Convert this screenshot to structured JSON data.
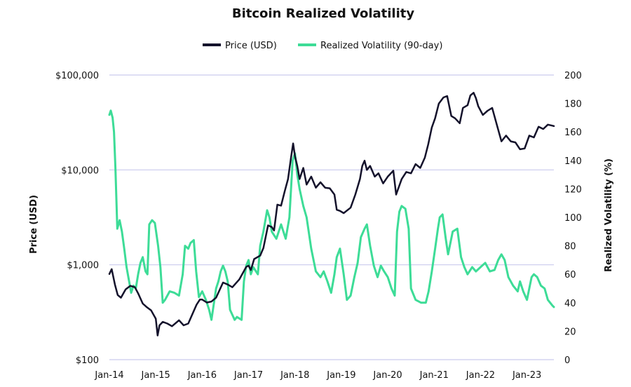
{
  "chart_data": {
    "type": "line",
    "title": "Bitcoin Realized Volatility",
    "legend_position": "top-center",
    "grid": true,
    "colors": {
      "price": "#14122b",
      "volatility": "#3ddc97",
      "grid": "#c9c9ee"
    },
    "x_axis": {
      "start": 2014.0,
      "end": 2023.58,
      "ticks": [
        {
          "label": "Jan-14",
          "value": 2014
        },
        {
          "label": "Jan-15",
          "value": 2015
        },
        {
          "label": "Jan-16",
          "value": 2016
        },
        {
          "label": "Jan-17",
          "value": 2017
        },
        {
          "label": "Jan-18",
          "value": 2018
        },
        {
          "label": "Jan-19",
          "value": 2019
        },
        {
          "label": "Jan-20",
          "value": 2020
        },
        {
          "label": "Jan-21",
          "value": 2021
        },
        {
          "label": "Jan-22",
          "value": 2022
        },
        {
          "label": "Jan-23",
          "value": 2023
        }
      ]
    },
    "y_left": {
      "label": "Price (USD)",
      "scale": "log",
      "range": [
        100,
        100000
      ],
      "ticks": [
        {
          "label": "$100",
          "value": 100
        },
        {
          "label": "$1,000",
          "value": 1000
        },
        {
          "label": "$10,000",
          "value": 10000
        },
        {
          "label": "$100,000",
          "value": 100000
        }
      ]
    },
    "y_right": {
      "label": "Realized Volatility (%)",
      "scale": "linear",
      "range": [
        0,
        200
      ],
      "ticks": [
        {
          "label": "0",
          "value": 0
        },
        {
          "label": "20",
          "value": 20
        },
        {
          "label": "40",
          "value": 40
        },
        {
          "label": "60",
          "value": 60
        },
        {
          "label": "80",
          "value": 80
        },
        {
          "label": "100",
          "value": 100
        },
        {
          "label": "120",
          "value": 120
        },
        {
          "label": "140",
          "value": 140
        },
        {
          "label": "160",
          "value": 160
        },
        {
          "label": "180",
          "value": 180
        },
        {
          "label": "200",
          "value": 200
        }
      ]
    },
    "series": [
      {
        "name": "Price (USD)",
        "axis": "left",
        "points": [
          [
            2014.0,
            800
          ],
          [
            2014.05,
            900
          ],
          [
            2014.12,
            620
          ],
          [
            2014.18,
            480
          ],
          [
            2014.25,
            450
          ],
          [
            2014.35,
            550
          ],
          [
            2014.45,
            600
          ],
          [
            2014.55,
            580
          ],
          [
            2014.62,
            500
          ],
          [
            2014.72,
            390
          ],
          [
            2014.8,
            360
          ],
          [
            2014.9,
            330
          ],
          [
            2015.0,
            270
          ],
          [
            2015.04,
            180
          ],
          [
            2015.08,
            230
          ],
          [
            2015.15,
            250
          ],
          [
            2015.25,
            240
          ],
          [
            2015.35,
            225
          ],
          [
            2015.5,
            260
          ],
          [
            2015.6,
            230
          ],
          [
            2015.7,
            240
          ],
          [
            2015.8,
            310
          ],
          [
            2015.88,
            380
          ],
          [
            2015.95,
            430
          ],
          [
            2016.0,
            430
          ],
          [
            2016.1,
            400
          ],
          [
            2016.2,
            410
          ],
          [
            2016.3,
            450
          ],
          [
            2016.45,
            650
          ],
          [
            2016.55,
            620
          ],
          [
            2016.65,
            580
          ],
          [
            2016.8,
            700
          ],
          [
            2016.95,
            950
          ],
          [
            2017.0,
            980
          ],
          [
            2017.05,
            880
          ],
          [
            2017.12,
            1150
          ],
          [
            2017.25,
            1250
          ],
          [
            2017.32,
            1500
          ],
          [
            2017.42,
            2600
          ],
          [
            2017.5,
            2500
          ],
          [
            2017.55,
            2300
          ],
          [
            2017.62,
            4300
          ],
          [
            2017.7,
            4200
          ],
          [
            2017.78,
            6000
          ],
          [
            2017.85,
            8000
          ],
          [
            2017.92,
            14000
          ],
          [
            2017.96,
            19000
          ],
          [
            2018.0,
            14000
          ],
          [
            2018.05,
            11000
          ],
          [
            2018.1,
            8000
          ],
          [
            2018.18,
            10500
          ],
          [
            2018.25,
            7000
          ],
          [
            2018.35,
            8500
          ],
          [
            2018.45,
            6500
          ],
          [
            2018.55,
            7400
          ],
          [
            2018.65,
            6500
          ],
          [
            2018.75,
            6400
          ],
          [
            2018.85,
            5500
          ],
          [
            2018.9,
            3800
          ],
          [
            2018.97,
            3700
          ],
          [
            2019.05,
            3500
          ],
          [
            2019.2,
            4000
          ],
          [
            2019.3,
            5500
          ],
          [
            2019.4,
            8000
          ],
          [
            2019.45,
            11000
          ],
          [
            2019.5,
            12500
          ],
          [
            2019.55,
            10000
          ],
          [
            2019.62,
            11000
          ],
          [
            2019.72,
            8500
          ],
          [
            2019.8,
            9200
          ],
          [
            2019.9,
            7200
          ],
          [
            2020.0,
            8500
          ],
          [
            2020.12,
            9800
          ],
          [
            2020.18,
            5500
          ],
          [
            2020.3,
            8000
          ],
          [
            2020.4,
            9500
          ],
          [
            2020.5,
            9200
          ],
          [
            2020.6,
            11500
          ],
          [
            2020.7,
            10500
          ],
          [
            2020.8,
            13500
          ],
          [
            2020.87,
            18500
          ],
          [
            2020.95,
            28000
          ],
          [
            2021.02,
            35000
          ],
          [
            2021.1,
            50000
          ],
          [
            2021.2,
            58000
          ],
          [
            2021.28,
            60000
          ],
          [
            2021.37,
            37000
          ],
          [
            2021.45,
            35000
          ],
          [
            2021.55,
            31000
          ],
          [
            2021.62,
            45000
          ],
          [
            2021.72,
            48000
          ],
          [
            2021.78,
            61000
          ],
          [
            2021.85,
            65000
          ],
          [
            2021.9,
            57000
          ],
          [
            2021.95,
            47000
          ],
          [
            2022.05,
            38000
          ],
          [
            2022.15,
            42000
          ],
          [
            2022.25,
            45000
          ],
          [
            2022.35,
            30000
          ],
          [
            2022.45,
            20000
          ],
          [
            2022.55,
            23000
          ],
          [
            2022.65,
            20000
          ],
          [
            2022.75,
            19500
          ],
          [
            2022.85,
            16500
          ],
          [
            2022.95,
            16800
          ],
          [
            2023.05,
            23000
          ],
          [
            2023.15,
            22000
          ],
          [
            2023.25,
            28500
          ],
          [
            2023.35,
            27000
          ],
          [
            2023.45,
            30000
          ],
          [
            2023.52,
            29500
          ],
          [
            2023.58,
            29000
          ]
        ]
      },
      {
        "name": "Realized Volatility (90-day)",
        "axis": "right",
        "points": [
          [
            2014.0,
            172
          ],
          [
            2014.03,
            175
          ],
          [
            2014.07,
            170
          ],
          [
            2014.1,
            160
          ],
          [
            2014.13,
            135
          ],
          [
            2014.17,
            92
          ],
          [
            2014.22,
            98
          ],
          [
            2014.27,
            90
          ],
          [
            2014.32,
            78
          ],
          [
            2014.37,
            65
          ],
          [
            2014.42,
            56
          ],
          [
            2014.47,
            47
          ],
          [
            2014.52,
            52
          ],
          [
            2014.57,
            50
          ],
          [
            2014.62,
            60
          ],
          [
            2014.67,
            68
          ],
          [
            2014.72,
            72
          ],
          [
            2014.78,
            62
          ],
          [
            2014.82,
            60
          ],
          [
            2014.86,
            95
          ],
          [
            2014.92,
            98
          ],
          [
            2014.98,
            96
          ],
          [
            2015.05,
            80
          ],
          [
            2015.1,
            65
          ],
          [
            2015.15,
            40
          ],
          [
            2015.2,
            42
          ],
          [
            2015.3,
            48
          ],
          [
            2015.4,
            47
          ],
          [
            2015.5,
            45
          ],
          [
            2015.58,
            60
          ],
          [
            2015.63,
            80
          ],
          [
            2015.7,
            78
          ],
          [
            2015.75,
            82
          ],
          [
            2015.82,
            84
          ],
          [
            2015.87,
            62
          ],
          [
            2015.93,
            44
          ],
          [
            2016.0,
            48
          ],
          [
            2016.08,
            42
          ],
          [
            2016.15,
            35
          ],
          [
            2016.2,
            28
          ],
          [
            2016.3,
            50
          ],
          [
            2016.35,
            55
          ],
          [
            2016.4,
            62
          ],
          [
            2016.45,
            66
          ],
          [
            2016.5,
            62
          ],
          [
            2016.55,
            55
          ],
          [
            2016.6,
            35
          ],
          [
            2016.7,
            28
          ],
          [
            2016.75,
            30
          ],
          [
            2016.85,
            28
          ],
          [
            2016.9,
            55
          ],
          [
            2016.95,
            66
          ],
          [
            2017.0,
            70
          ],
          [
            2017.05,
            60
          ],
          [
            2017.1,
            65
          ],
          [
            2017.2,
            60
          ],
          [
            2017.25,
            80
          ],
          [
            2017.32,
            90
          ],
          [
            2017.4,
            105
          ],
          [
            2017.45,
            100
          ],
          [
            2017.5,
            90
          ],
          [
            2017.6,
            85
          ],
          [
            2017.7,
            95
          ],
          [
            2017.8,
            85
          ],
          [
            2017.88,
            100
          ],
          [
            2017.95,
            140
          ],
          [
            2018.0,
            145
          ],
          [
            2018.05,
            130
          ],
          [
            2018.1,
            120
          ],
          [
            2018.18,
            108
          ],
          [
            2018.25,
            100
          ],
          [
            2018.35,
            78
          ],
          [
            2018.45,
            62
          ],
          [
            2018.55,
            58
          ],
          [
            2018.62,
            62
          ],
          [
            2018.7,
            55
          ],
          [
            2018.78,
            47
          ],
          [
            2018.85,
            60
          ],
          [
            2018.9,
            72
          ],
          [
            2018.97,
            78
          ],
          [
            2019.05,
            60
          ],
          [
            2019.12,
            42
          ],
          [
            2019.2,
            45
          ],
          [
            2019.28,
            58
          ],
          [
            2019.35,
            68
          ],
          [
            2019.42,
            86
          ],
          [
            2019.5,
            92
          ],
          [
            2019.55,
            95
          ],
          [
            2019.62,
            80
          ],
          [
            2019.7,
            66
          ],
          [
            2019.78,
            58
          ],
          [
            2019.85,
            66
          ],
          [
            2019.92,
            62
          ],
          [
            2020.0,
            58
          ],
          [
            2020.08,
            50
          ],
          [
            2020.15,
            45
          ],
          [
            2020.2,
            90
          ],
          [
            2020.25,
            104
          ],
          [
            2020.3,
            108
          ],
          [
            2020.38,
            106
          ],
          [
            2020.45,
            92
          ],
          [
            2020.5,
            50
          ],
          [
            2020.6,
            42
          ],
          [
            2020.72,
            40
          ],
          [
            2020.82,
            40
          ],
          [
            2020.88,
            48
          ],
          [
            2020.95,
            62
          ],
          [
            2021.02,
            78
          ],
          [
            2021.08,
            92
          ],
          [
            2021.12,
            100
          ],
          [
            2021.18,
            102
          ],
          [
            2021.25,
            85
          ],
          [
            2021.3,
            74
          ],
          [
            2021.4,
            90
          ],
          [
            2021.5,
            92
          ],
          [
            2021.58,
            72
          ],
          [
            2021.65,
            65
          ],
          [
            2021.72,
            60
          ],
          [
            2021.82,
            65
          ],
          [
            2021.9,
            62
          ],
          [
            2022.0,
            65
          ],
          [
            2022.1,
            68
          ],
          [
            2022.2,
            62
          ],
          [
            2022.3,
            63
          ],
          [
            2022.38,
            70
          ],
          [
            2022.45,
            74
          ],
          [
            2022.52,
            70
          ],
          [
            2022.6,
            58
          ],
          [
            2022.7,
            52
          ],
          [
            2022.8,
            48
          ],
          [
            2022.85,
            55
          ],
          [
            2022.92,
            48
          ],
          [
            2023.0,
            42
          ],
          [
            2023.05,
            50
          ],
          [
            2023.1,
            58
          ],
          [
            2023.15,
            60
          ],
          [
            2023.22,
            58
          ],
          [
            2023.3,
            52
          ],
          [
            2023.38,
            50
          ],
          [
            2023.45,
            42
          ],
          [
            2023.5,
            40
          ],
          [
            2023.55,
            38
          ],
          [
            2023.58,
            37
          ]
        ]
      }
    ]
  }
}
